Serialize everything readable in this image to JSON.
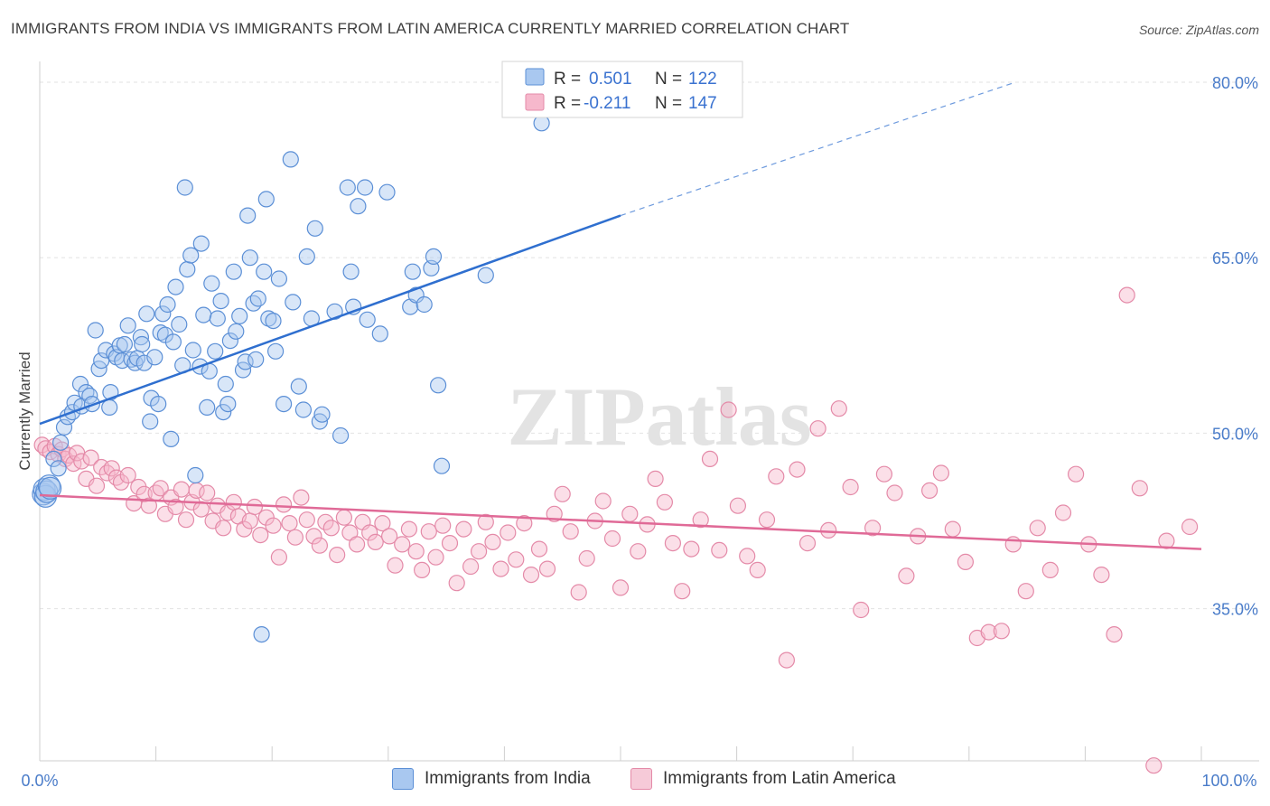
{
  "title": "IMMIGRANTS FROM INDIA VS IMMIGRANTS FROM LATIN AMERICA CURRENTLY MARRIED CORRELATION CHART",
  "source": "Source: ZipAtlas.com",
  "watermark": "ZIPatlas",
  "legend": {
    "r_label": "R =",
    "n_label": "N =",
    "items": [
      {
        "r": "0.501",
        "n": "122"
      },
      {
        "r": "-0.211",
        "n": "147"
      }
    ]
  },
  "chart_data": {
    "type": "scatter",
    "ylabel": "Currently Married",
    "xlim": [
      0,
      100
    ],
    "ylim": [
      22,
      81
    ],
    "y_ticks": [
      "80.0%",
      "65.0%",
      "50.0%",
      "35.0%"
    ],
    "y_tick_values": [
      80,
      65,
      50,
      35
    ],
    "x_tick_labels": [
      "0.0%",
      "100.0%"
    ],
    "grid": true,
    "colors": {
      "india_fill": "#a9c8f0",
      "india_stroke": "#5b8fd6",
      "india_line": "#2f6fcf",
      "latam_fill": "#f6b8cc",
      "latam_stroke": "#e48aa8",
      "latam_line": "#e06a97"
    },
    "series": [
      {
        "name": "Immigrants from India",
        "trend": {
          "x0": 0,
          "y0": 50.8,
          "x1": 50,
          "y1": 68.6,
          "dashed_to_x": 84,
          "dashed_to_y": 80.0
        },
        "points": [
          [
            0.3,
            44.8
          ],
          [
            0.4,
            45.2
          ],
          [
            0.5,
            44.6
          ],
          [
            0.6,
            45.0
          ],
          [
            0.8,
            45.5
          ],
          [
            0.9,
            45.3
          ],
          [
            1.2,
            47.8
          ],
          [
            1.6,
            47.0
          ],
          [
            1.8,
            49.2
          ],
          [
            2.1,
            50.5
          ],
          [
            2.4,
            51.4
          ],
          [
            2.8,
            51.8
          ],
          [
            3.0,
            52.6
          ],
          [
            3.5,
            54.2
          ],
          [
            3.6,
            52.3
          ],
          [
            4.0,
            53.5
          ],
          [
            4.3,
            53.2
          ],
          [
            4.5,
            52.5
          ],
          [
            4.8,
            58.8
          ],
          [
            5.1,
            55.5
          ],
          [
            5.3,
            56.2
          ],
          [
            5.7,
            57.1
          ],
          [
            6.0,
            52.2
          ],
          [
            6.1,
            53.5
          ],
          [
            6.4,
            56.8
          ],
          [
            6.6,
            56.5
          ],
          [
            6.9,
            57.5
          ],
          [
            7.1,
            56.2
          ],
          [
            7.3,
            57.6
          ],
          [
            7.6,
            59.2
          ],
          [
            7.9,
            56.3
          ],
          [
            8.2,
            56.0
          ],
          [
            8.4,
            56.4
          ],
          [
            8.7,
            58.2
          ],
          [
            8.8,
            57.6
          ],
          [
            9.0,
            56.0
          ],
          [
            9.2,
            60.2
          ],
          [
            9.5,
            51.0
          ],
          [
            9.6,
            53.0
          ],
          [
            9.9,
            56.5
          ],
          [
            10.2,
            52.5
          ],
          [
            10.4,
            58.6
          ],
          [
            10.6,
            60.2
          ],
          [
            10.8,
            58.4
          ],
          [
            11.0,
            61.0
          ],
          [
            11.3,
            49.5
          ],
          [
            11.5,
            57.8
          ],
          [
            11.7,
            62.5
          ],
          [
            12.0,
            59.3
          ],
          [
            12.3,
            55.8
          ],
          [
            12.5,
            71.0
          ],
          [
            12.7,
            64.0
          ],
          [
            13.0,
            65.2
          ],
          [
            13.2,
            57.1
          ],
          [
            13.4,
            46.4
          ],
          [
            13.8,
            55.7
          ],
          [
            13.9,
            66.2
          ],
          [
            14.1,
            60.1
          ],
          [
            14.4,
            52.2
          ],
          [
            14.6,
            55.3
          ],
          [
            14.8,
            62.8
          ],
          [
            15.1,
            57.0
          ],
          [
            15.3,
            59.8
          ],
          [
            15.6,
            61.3
          ],
          [
            15.8,
            51.8
          ],
          [
            16.0,
            54.2
          ],
          [
            16.2,
            52.5
          ],
          [
            16.4,
            57.9
          ],
          [
            16.7,
            63.8
          ],
          [
            16.9,
            58.7
          ],
          [
            17.2,
            60.0
          ],
          [
            17.5,
            55.4
          ],
          [
            17.7,
            56.1
          ],
          [
            17.9,
            68.6
          ],
          [
            18.1,
            65.0
          ],
          [
            18.4,
            61.1
          ],
          [
            18.6,
            56.3
          ],
          [
            18.8,
            61.5
          ],
          [
            19.1,
            32.8
          ],
          [
            19.3,
            63.8
          ],
          [
            19.5,
            70.0
          ],
          [
            19.7,
            59.8
          ],
          [
            20.1,
            59.6
          ],
          [
            20.3,
            57.0
          ],
          [
            20.6,
            63.2
          ],
          [
            21.0,
            52.5
          ],
          [
            21.6,
            73.4
          ],
          [
            21.8,
            61.2
          ],
          [
            22.3,
            54.0
          ],
          [
            22.7,
            52.0
          ],
          [
            23.0,
            65.1
          ],
          [
            23.4,
            59.8
          ],
          [
            23.7,
            67.5
          ],
          [
            24.1,
            51.0
          ],
          [
            24.3,
            51.6
          ],
          [
            25.4,
            60.4
          ],
          [
            25.9,
            49.8
          ],
          [
            26.5,
            71.0
          ],
          [
            26.8,
            63.8
          ],
          [
            27.0,
            60.8
          ],
          [
            27.4,
            69.4
          ],
          [
            28.0,
            71.0
          ],
          [
            28.2,
            59.7
          ],
          [
            29.3,
            58.5
          ],
          [
            29.9,
            70.6
          ],
          [
            31.9,
            60.8
          ],
          [
            32.1,
            63.8
          ],
          [
            32.4,
            61.8
          ],
          [
            33.1,
            61.0
          ],
          [
            33.7,
            64.1
          ],
          [
            33.9,
            65.1
          ],
          [
            34.3,
            54.1
          ],
          [
            34.6,
            47.2
          ],
          [
            38.4,
            63.5
          ],
          [
            43.2,
            76.5
          ]
        ]
      },
      {
        "name": "Immigrants from Latin America",
        "trend": {
          "x0": 0,
          "y0": 44.7,
          "x1": 100,
          "y1": 40.1
        },
        "points": [
          [
            0.2,
            49.0
          ],
          [
            0.5,
            48.7
          ],
          [
            0.9,
            48.4
          ],
          [
            1.3,
            48.9
          ],
          [
            1.6,
            48.2
          ],
          [
            1.9,
            48.6
          ],
          [
            2.2,
            47.8
          ],
          [
            2.5,
            48.1
          ],
          [
            2.9,
            47.4
          ],
          [
            3.2,
            48.3
          ],
          [
            3.6,
            47.6
          ],
          [
            4.0,
            46.1
          ],
          [
            4.4,
            47.9
          ],
          [
            4.9,
            45.5
          ],
          [
            5.3,
            47.1
          ],
          [
            5.8,
            46.6
          ],
          [
            6.2,
            47.0
          ],
          [
            6.6,
            46.2
          ],
          [
            7.0,
            45.8
          ],
          [
            7.6,
            46.4
          ],
          [
            8.1,
            44.0
          ],
          [
            8.5,
            45.4
          ],
          [
            9.0,
            44.8
          ],
          [
            9.4,
            43.8
          ],
          [
            10.0,
            44.9
          ],
          [
            10.4,
            45.3
          ],
          [
            10.8,
            43.1
          ],
          [
            11.3,
            44.5
          ],
          [
            11.7,
            43.7
          ],
          [
            12.2,
            45.2
          ],
          [
            12.6,
            42.6
          ],
          [
            13.1,
            44.1
          ],
          [
            13.5,
            45.1
          ],
          [
            13.9,
            43.5
          ],
          [
            14.4,
            44.9
          ],
          [
            14.9,
            42.5
          ],
          [
            15.3,
            43.8
          ],
          [
            15.8,
            41.9
          ],
          [
            16.2,
            43.2
          ],
          [
            16.7,
            44.1
          ],
          [
            17.1,
            42.9
          ],
          [
            17.6,
            41.8
          ],
          [
            18.1,
            42.5
          ],
          [
            18.5,
            43.7
          ],
          [
            19.0,
            41.3
          ],
          [
            19.5,
            42.8
          ],
          [
            20.1,
            42.1
          ],
          [
            20.6,
            39.4
          ],
          [
            21.0,
            43.9
          ],
          [
            21.5,
            42.3
          ],
          [
            22.0,
            41.1
          ],
          [
            22.5,
            44.5
          ],
          [
            23.0,
            42.6
          ],
          [
            23.6,
            41.2
          ],
          [
            24.1,
            40.4
          ],
          [
            24.6,
            42.4
          ],
          [
            25.1,
            41.9
          ],
          [
            25.6,
            39.6
          ],
          [
            26.2,
            42.8
          ],
          [
            26.7,
            41.5
          ],
          [
            27.3,
            40.5
          ],
          [
            27.8,
            42.4
          ],
          [
            28.4,
            41.5
          ],
          [
            28.9,
            40.7
          ],
          [
            29.5,
            42.3
          ],
          [
            30.1,
            41.2
          ],
          [
            30.6,
            38.7
          ],
          [
            31.2,
            40.5
          ],
          [
            31.8,
            41.8
          ],
          [
            32.4,
            39.9
          ],
          [
            32.9,
            38.3
          ],
          [
            33.5,
            41.6
          ],
          [
            34.1,
            39.4
          ],
          [
            34.7,
            42.1
          ],
          [
            35.3,
            40.6
          ],
          [
            35.9,
            37.2
          ],
          [
            36.5,
            41.8
          ],
          [
            37.1,
            38.6
          ],
          [
            37.8,
            39.9
          ],
          [
            38.4,
            42.4
          ],
          [
            39.0,
            40.7
          ],
          [
            39.7,
            38.4
          ],
          [
            40.3,
            41.5
          ],
          [
            41.0,
            39.2
          ],
          [
            41.7,
            42.3
          ],
          [
            42.3,
            37.9
          ],
          [
            43.0,
            40.1
          ],
          [
            43.7,
            38.4
          ],
          [
            44.3,
            43.1
          ],
          [
            45.0,
            44.8
          ],
          [
            45.7,
            41.6
          ],
          [
            46.4,
            36.4
          ],
          [
            47.1,
            39.3
          ],
          [
            47.8,
            42.5
          ],
          [
            48.5,
            44.2
          ],
          [
            49.3,
            41.0
          ],
          [
            50.0,
            36.8
          ],
          [
            50.8,
            43.1
          ],
          [
            51.5,
            39.9
          ],
          [
            52.3,
            42.2
          ],
          [
            53.0,
            46.1
          ],
          [
            53.8,
            44.1
          ],
          [
            54.5,
            40.6
          ],
          [
            55.3,
            36.5
          ],
          [
            56.1,
            40.1
          ],
          [
            56.9,
            42.6
          ],
          [
            57.7,
            47.8
          ],
          [
            58.5,
            40.0
          ],
          [
            59.3,
            52.0
          ],
          [
            60.1,
            43.8
          ],
          [
            60.9,
            39.5
          ],
          [
            61.8,
            38.3
          ],
          [
            62.6,
            42.6
          ],
          [
            63.4,
            46.3
          ],
          [
            64.3,
            30.6
          ],
          [
            65.2,
            46.9
          ],
          [
            66.1,
            40.6
          ],
          [
            67.0,
            50.4
          ],
          [
            67.9,
            41.7
          ],
          [
            68.8,
            52.1
          ],
          [
            69.8,
            45.4
          ],
          [
            70.7,
            34.9
          ],
          [
            71.7,
            41.9
          ],
          [
            72.7,
            46.5
          ],
          [
            73.6,
            44.9
          ],
          [
            74.6,
            37.8
          ],
          [
            75.6,
            41.2
          ],
          [
            76.6,
            45.1
          ],
          [
            77.6,
            46.6
          ],
          [
            78.6,
            41.8
          ],
          [
            79.7,
            39.0
          ],
          [
            80.7,
            32.5
          ],
          [
            81.7,
            33.0
          ],
          [
            82.8,
            33.1
          ],
          [
            83.8,
            40.5
          ],
          [
            84.9,
            36.5
          ],
          [
            85.9,
            41.9
          ],
          [
            87.0,
            38.3
          ],
          [
            88.1,
            43.2
          ],
          [
            89.2,
            46.5
          ],
          [
            90.3,
            40.5
          ],
          [
            91.4,
            37.9
          ],
          [
            92.5,
            32.8
          ],
          [
            93.6,
            61.8
          ],
          [
            94.7,
            45.3
          ],
          [
            95.9,
            21.6
          ],
          [
            97.0,
            40.8
          ],
          [
            99.0,
            42.0
          ]
        ]
      }
    ]
  }
}
